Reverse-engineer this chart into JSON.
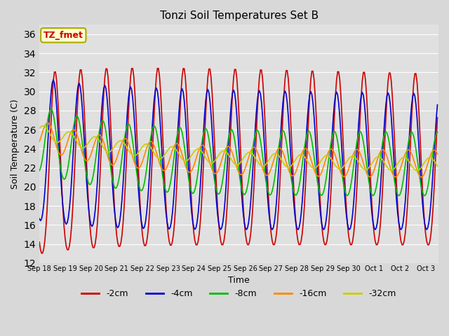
{
  "title": "Tonzi Soil Temperatures Set B",
  "xlabel": "Time",
  "ylabel": "Soil Temperature (C)",
  "ylim": [
    12,
    37
  ],
  "yticks": [
    12,
    14,
    16,
    18,
    20,
    22,
    24,
    26,
    28,
    30,
    32,
    34,
    36
  ],
  "fig_bg_color": "#d8d8d8",
  "plot_bg_color": "#e0e0e0",
  "grid_color": "white",
  "annotation_text": "TZ_fmet",
  "annotation_bg": "#ffffcc",
  "annotation_border": "#aaaa00",
  "annotation_color": "#cc0000",
  "colors": {
    "-2cm": "#cc0000",
    "-4cm": "#0000cc",
    "-8cm": "#00bb00",
    "-16cm": "#ff8800",
    "-32cm": "#cccc00"
  },
  "line_width": 1.2,
  "legend_labels": [
    "-2cm",
    "-4cm",
    "-8cm",
    "-16cm",
    "-32cm"
  ]
}
